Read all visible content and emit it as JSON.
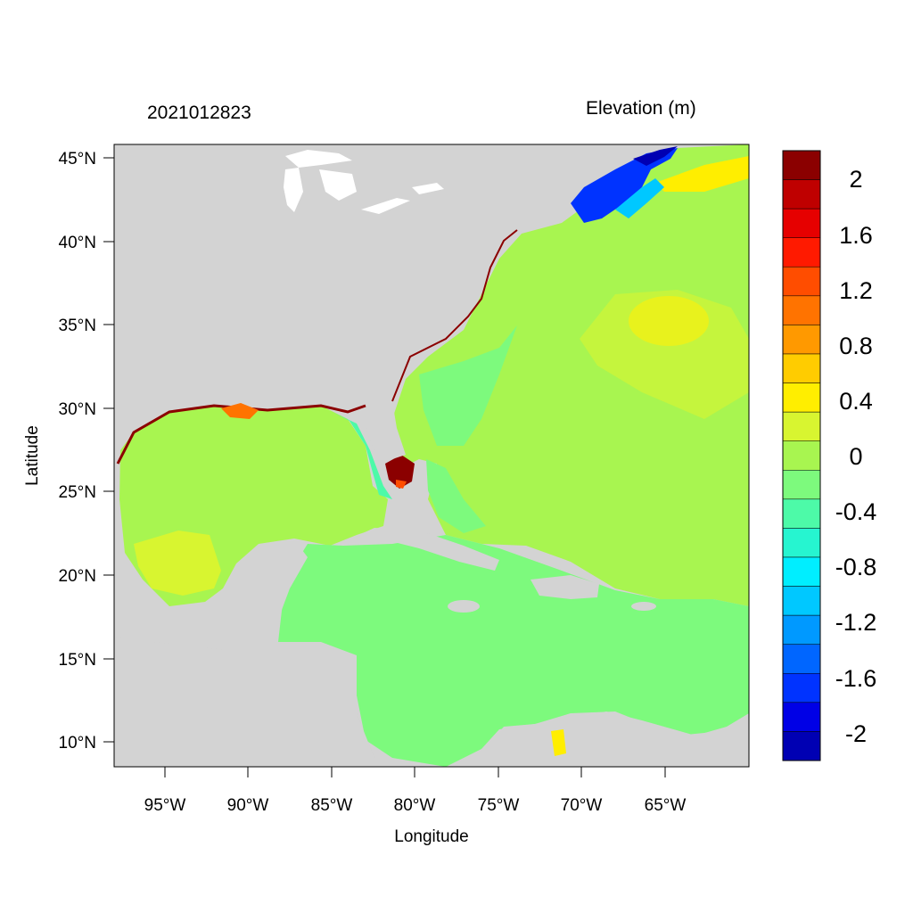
{
  "title_left": "2021012823",
  "title_right": "Elevation (m)",
  "axes": {
    "xlabel": "Longitude",
    "ylabel": "Latitude",
    "x_ticks": [
      "95°W",
      "90°W",
      "85°W",
      "80°W",
      "75°W",
      "70°W",
      "65°W"
    ],
    "y_ticks": [
      "45°N",
      "40°N",
      "35°N",
      "30°N",
      "25°N",
      "20°N",
      "15°N",
      "10°N"
    ],
    "lon_range": [
      -98,
      -60
    ],
    "lat_range": [
      8.5,
      46
    ]
  },
  "colorbar": {
    "labels": [
      "2",
      "1.6",
      "1.2",
      "0.8",
      "0.4",
      "0",
      "-0.4",
      "-0.8",
      "-1.2",
      "-1.6",
      "-2"
    ],
    "colors_top_to_bottom": [
      "#8b0000",
      "#bf0000",
      "#e60000",
      "#ff1a00",
      "#ff4d00",
      "#ff7300",
      "#ff9900",
      "#ffcc00",
      "#ffee00",
      "#d8f530",
      "#a8f550",
      "#7dfa7d",
      "#4dfaa8",
      "#26f5d0",
      "#00eeff",
      "#00c8ff",
      "#0099ff",
      "#0066ff",
      "#0033ff",
      "#0000e6",
      "#0000b3"
    ]
  },
  "colors": {
    "land": "#d3d3d3",
    "lakes": "#ffffff",
    "ocean_main": "#a8f550",
    "caribbean": "#7dfa7d",
    "positive_high": "#ffee00",
    "negative": "#0033ff",
    "coastal_surge": "#8b0000"
  }
}
